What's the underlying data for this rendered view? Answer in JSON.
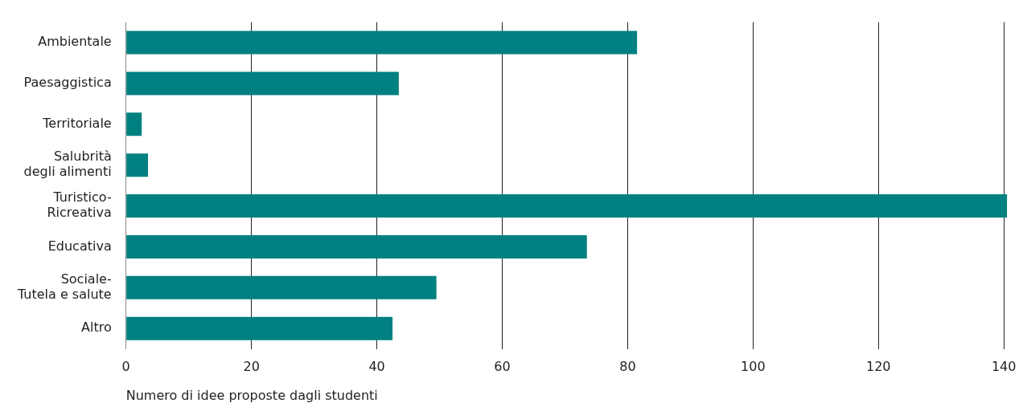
{
  "chart_data": {
    "type": "bar",
    "orientation": "horizontal",
    "xlabel": "Numero di idee proposte dagli studenti",
    "categories": [
      "Ambientale",
      "Paesaggistica",
      "Territoriale",
      "Salubrità\ndegli alimenti",
      "Turistico-\nRicreativa",
      "Educativa",
      "Sociale-\nTutela e salute",
      "Altro"
    ],
    "values": [
      81.5,
      43.5,
      2.5,
      3.5,
      140.5,
      73.5,
      49.5,
      42.5
    ],
    "color": "#008080",
    "xlim": [
      0,
      141
    ],
    "xticks": [
      0,
      20,
      40,
      60,
      80,
      100,
      120,
      140
    ],
    "grid": "x"
  }
}
